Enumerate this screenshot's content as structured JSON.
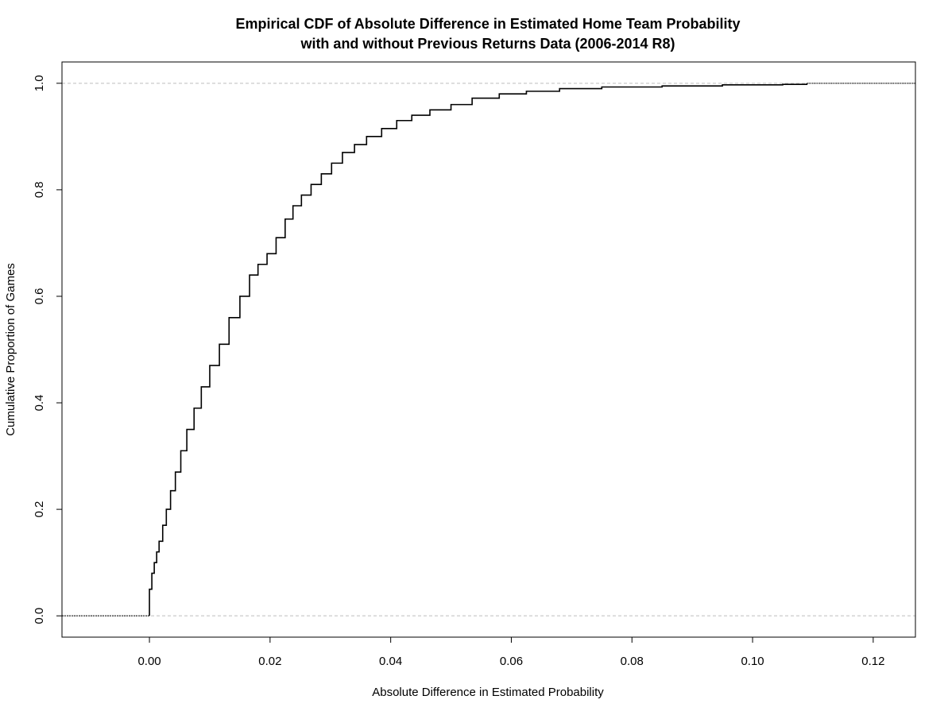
{
  "chart_data": {
    "type": "line",
    "subtype": "empirical-cdf-step",
    "title": "Empirical CDF of Absolute Difference in Estimated Home Team Probability",
    "subtitle": "with and without Previous Returns Data (2006-2014 R8)",
    "xlabel": "Absolute Difference in Estimated Probability",
    "ylabel": "Cumulative Proportion of Games",
    "xlim": [
      -0.0145,
      0.127
    ],
    "ylim": [
      -0.04,
      1.04
    ],
    "x_ticks": [
      "0.00",
      "0.02",
      "0.04",
      "0.06",
      "0.08",
      "0.10",
      "0.12"
    ],
    "x_tick_values": [
      0,
      0.02,
      0.04,
      0.06,
      0.08,
      0.1,
      0.12
    ],
    "y_ticks": [
      "0.0",
      "0.2",
      "0.4",
      "0.6",
      "0.8",
      "1.0"
    ],
    "y_tick_values": [
      0,
      0.2,
      0.4,
      0.6,
      0.8,
      1.0
    ],
    "reference_lines_y": [
      0,
      1
    ],
    "reference_line_color": "#bebebe",
    "line_color": "#000000",
    "grid": false,
    "series": [
      {
        "x": [
          0.0,
          0.0004,
          0.0008,
          0.0012,
          0.0016,
          0.0022,
          0.0028,
          0.0035,
          0.0043,
          0.0052,
          0.0062,
          0.0074,
          0.0086,
          0.01,
          0.0116,
          0.0132,
          0.015,
          0.0166,
          0.018,
          0.0195,
          0.021,
          0.0225,
          0.0238,
          0.0252,
          0.0268,
          0.0285,
          0.0302,
          0.032,
          0.034,
          0.036,
          0.0385,
          0.041,
          0.0435,
          0.0465,
          0.05,
          0.0535,
          0.058,
          0.0625,
          0.068,
          0.075,
          0.085,
          0.095,
          0.105,
          0.109
        ],
        "y": [
          0.05,
          0.08,
          0.1,
          0.12,
          0.14,
          0.17,
          0.2,
          0.235,
          0.27,
          0.31,
          0.35,
          0.39,
          0.43,
          0.47,
          0.51,
          0.56,
          0.6,
          0.64,
          0.66,
          0.68,
          0.71,
          0.745,
          0.77,
          0.79,
          0.81,
          0.83,
          0.85,
          0.87,
          0.885,
          0.9,
          0.915,
          0.93,
          0.94,
          0.95,
          0.96,
          0.972,
          0.98,
          0.985,
          0.99,
          0.993,
          0.995,
          0.997,
          0.998,
          1.0
        ]
      }
    ]
  }
}
